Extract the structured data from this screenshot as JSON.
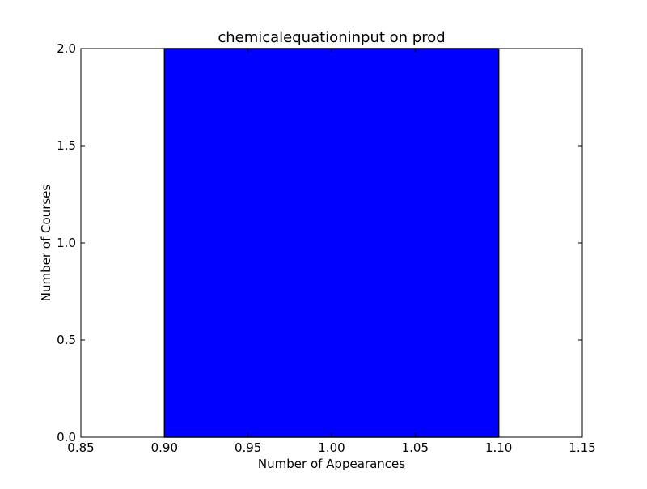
{
  "chart_data": {
    "type": "bar",
    "title": "chemicalequationinput on prod",
    "xlabel": "Number of Appearances",
    "ylabel": "Number of Courses",
    "xlim": [
      0.85,
      1.15
    ],
    "ylim": [
      0,
      2.0
    ],
    "xticks": [
      "0.85",
      "0.90",
      "0.95",
      "1.00",
      "1.05",
      "1.10",
      "1.15"
    ],
    "yticks": [
      "0.0",
      "0.5",
      "1.0",
      "1.5",
      "2.0"
    ],
    "grid": false,
    "bars": [
      {
        "x_start": 0.9,
        "x_end": 1.1,
        "value": 2
      }
    ],
    "colors": {
      "bar_fill": "#0000ff",
      "bar_edge": "#000000",
      "axes": "#000000",
      "background": "#ffffff"
    }
  }
}
